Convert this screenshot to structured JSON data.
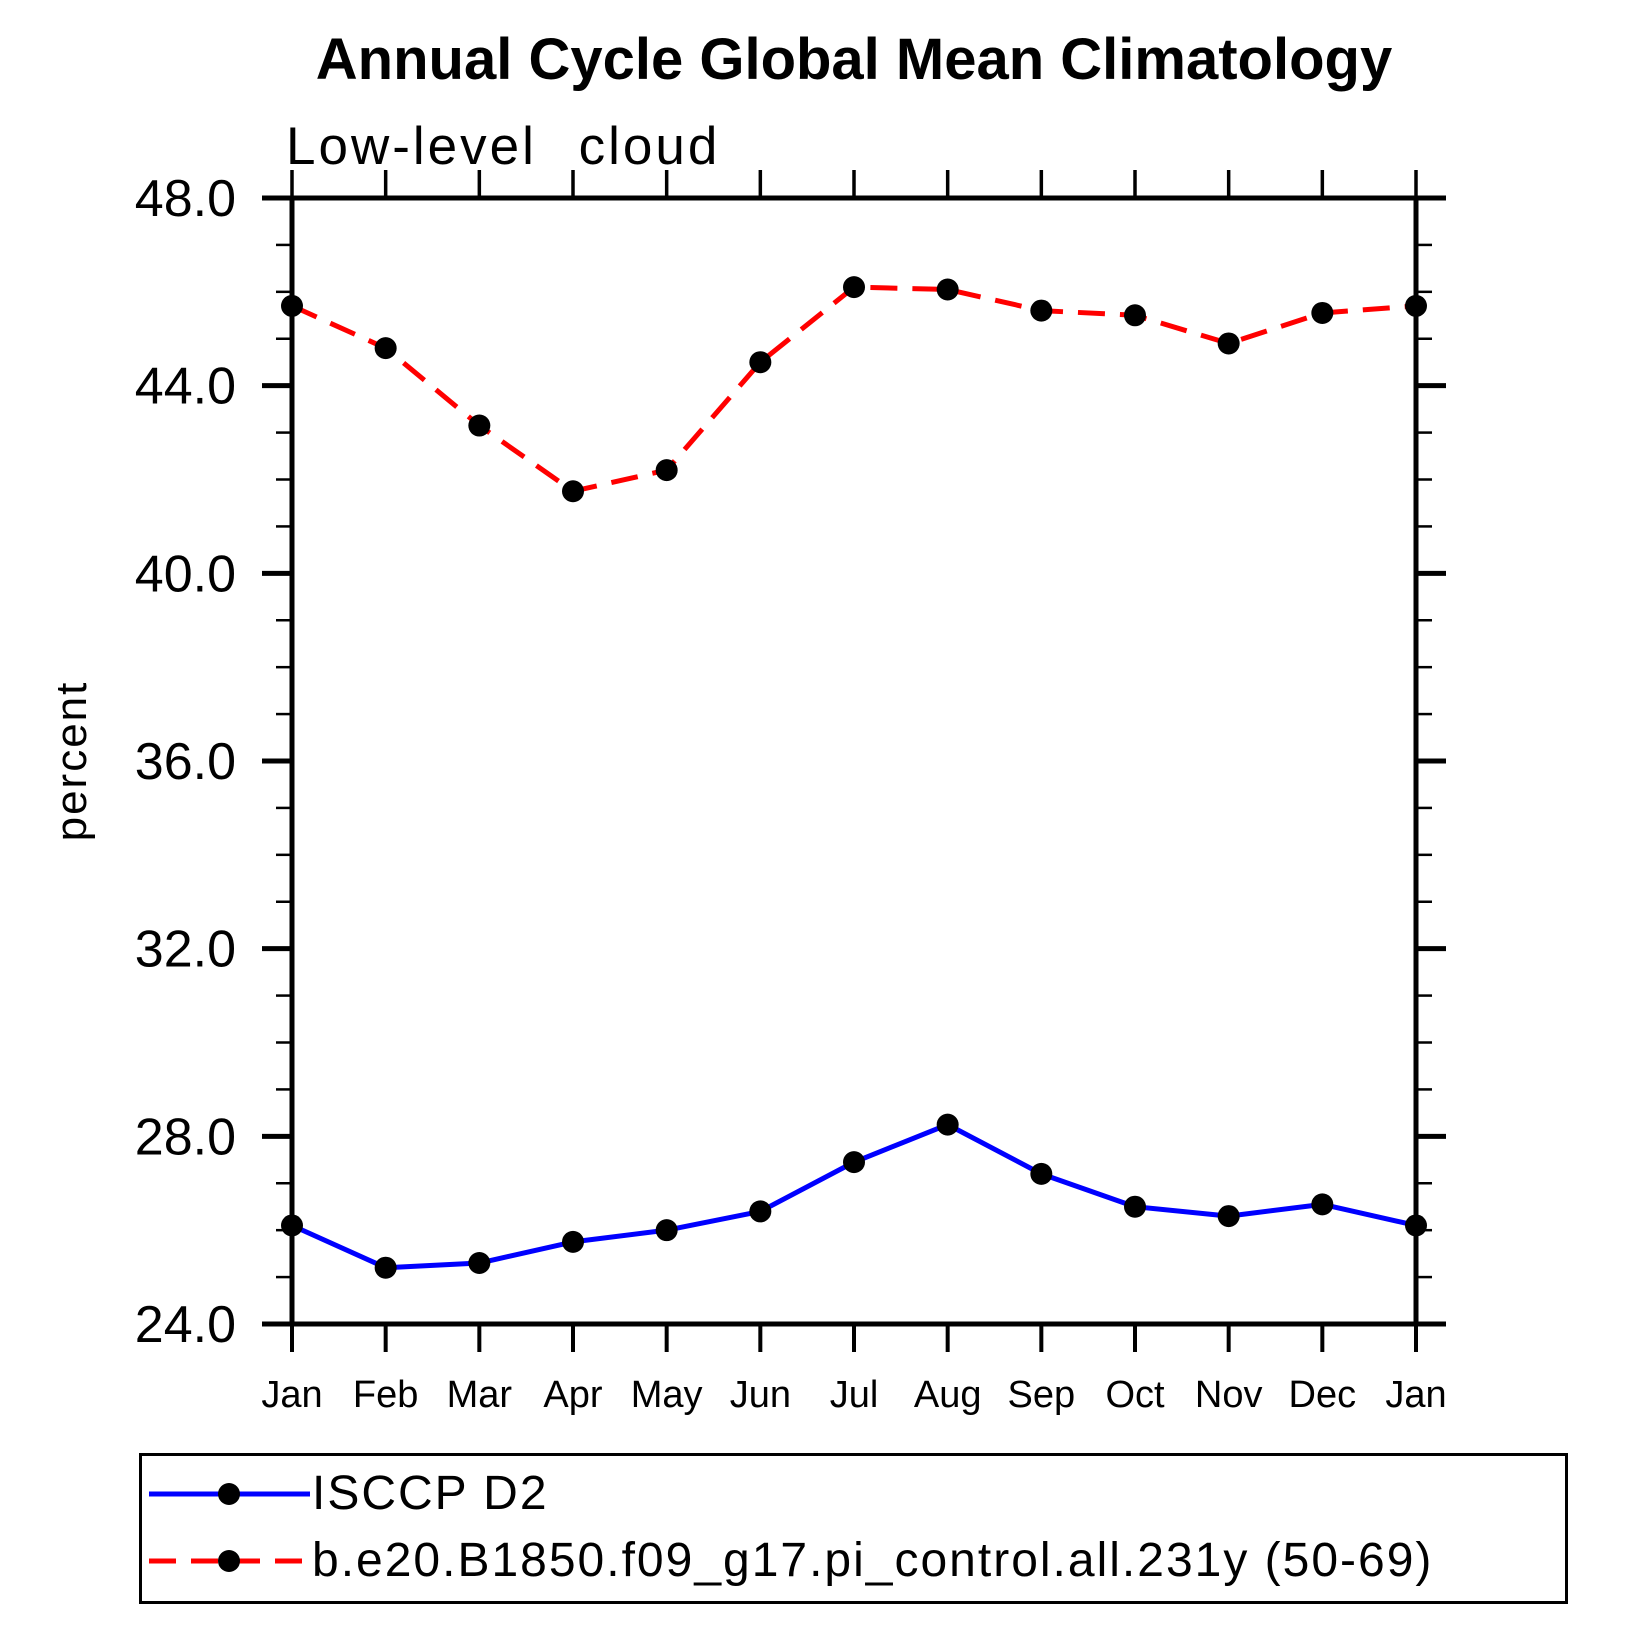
{
  "chart_data": {
    "type": "line",
    "title": "Annual Cycle Global Mean Climatology",
    "subtitle": "Low-level cloud",
    "ylabel": "percent",
    "categories": [
      "Jan",
      "Feb",
      "Mar",
      "Apr",
      "May",
      "Jun",
      "Jul",
      "Aug",
      "Sep",
      "Oct",
      "Nov",
      "Dec",
      "Jan"
    ],
    "ylim": [
      24.0,
      48.0
    ],
    "ytick_interval_major": 4.0,
    "ytick_interval_minor": 1.0,
    "ytick_labels": [
      "24.0",
      "28.0",
      "32.0",
      "36.0",
      "40.0",
      "44.0",
      "48.0"
    ],
    "grid": false,
    "legend_position": "bottom-box",
    "marker": "black-filled-circle",
    "frame_color": "#000000",
    "series": [
      {
        "name": "ISCCP D2",
        "color": "#0000ff",
        "line_style": "solid",
        "values": [
          26.1,
          25.2,
          25.3,
          25.75,
          26.0,
          26.4,
          27.45,
          28.25,
          27.2,
          26.5,
          26.3,
          26.55,
          26.1
        ]
      },
      {
        "name": "b.e20.B1850.f09_g17.pi_control.all.231y (50-69)",
        "color": "#ff0000",
        "line_style": "dashed",
        "values": [
          45.7,
          44.8,
          43.15,
          41.75,
          42.2,
          44.5,
          46.1,
          46.05,
          45.6,
          45.5,
          44.9,
          45.55,
          45.7
        ]
      }
    ]
  }
}
